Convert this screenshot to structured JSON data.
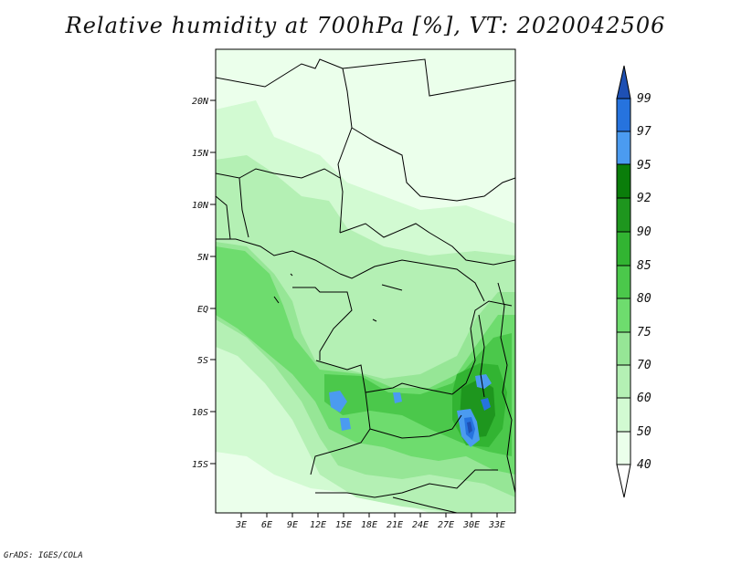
{
  "title": "Relative humidity at 700hPa [%], VT: 2020042506",
  "footer": "GrADS: IGES/COLA",
  "map": {
    "lat_labels": [
      "20N",
      "15N",
      "10N",
      "5N",
      "EQ",
      "5S",
      "10S",
      "15S"
    ],
    "lon_labels": [
      "3E",
      "6E",
      "9E",
      "12E",
      "15E",
      "18E",
      "21E",
      "24E",
      "27E",
      "30E",
      "33E"
    ]
  },
  "colorbar": {
    "levels": [
      "99",
      "97",
      "95",
      "92",
      "90",
      "85",
      "80",
      "75",
      "70",
      "60",
      "50",
      "40"
    ],
    "colors": [
      "#1e50b4",
      "#2673de",
      "#4b9bf0",
      "#0a7d0a",
      "#1e961e",
      "#32b432",
      "#4bc84b",
      "#6edc6e",
      "#96e696",
      "#b4f0b4",
      "#d2fad2",
      "#ebffeb"
    ]
  },
  "colors": {
    "land_frame": "#ffffff",
    "border": "#000000"
  }
}
